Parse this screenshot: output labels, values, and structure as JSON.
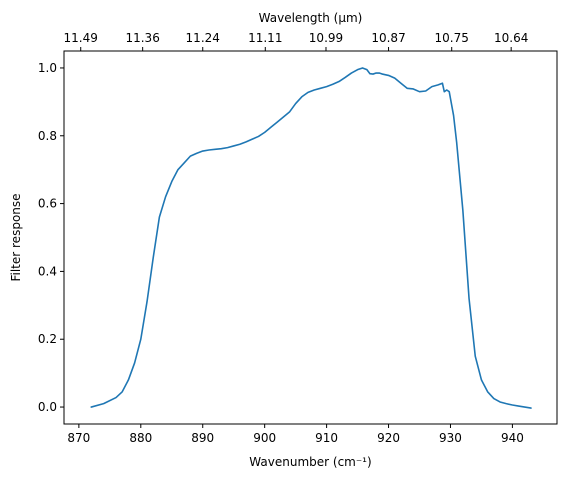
{
  "chart_data": {
    "type": "line",
    "title": "",
    "xlabel": "Wavenumber (cm⁻¹)",
    "ylabel": "Filter response",
    "top_axis_label": "Wavelength (μm)",
    "xlim": [
      867.6,
      947.2
    ],
    "ylim": [
      -0.05,
      1.05
    ],
    "x_ticks": [
      870,
      880,
      890,
      900,
      910,
      920,
      930,
      940
    ],
    "x_tick_labels": [
      "870",
      "880",
      "890",
      "900",
      "910",
      "920",
      "930",
      "940"
    ],
    "y_ticks": [
      0.0,
      0.2,
      0.4,
      0.6,
      0.8,
      1.0
    ],
    "y_tick_labels": [
      "0.0",
      "0.2",
      "0.4",
      "0.6",
      "0.8",
      "1.0"
    ],
    "top_ticks": [
      870.3,
      880.3,
      890.0,
      900.1,
      909.9,
      920.0,
      930.2,
      939.8
    ],
    "top_tick_labels": [
      "11.49",
      "11.36",
      "11.24",
      "11.11",
      "10.99",
      "10.87",
      "10.75",
      "10.64"
    ],
    "grid": false,
    "legend": "none",
    "series_color": "#1f77b4",
    "series": [
      {
        "x": [
          872,
          874,
          876,
          877,
          878,
          879,
          880,
          881,
          882,
          883,
          884,
          885,
          886,
          887,
          888,
          889,
          890,
          891,
          892,
          893,
          894,
          895,
          896,
          897,
          898,
          899,
          900,
          901,
          902,
          903,
          904,
          905,
          906,
          907,
          908,
          909,
          910,
          911,
          912,
          913,
          914,
          915,
          915.8,
          916.5,
          917,
          917.5,
          918,
          918.5,
          919,
          920,
          921,
          922,
          923,
          924,
          925,
          926,
          927,
          928,
          928.7,
          929,
          929.4,
          929.8,
          930,
          930.5,
          931,
          932,
          933,
          934,
          935,
          936,
          937,
          938,
          939,
          940,
          941,
          942,
          943
        ],
        "y": [
          0.0,
          0.01,
          0.028,
          0.045,
          0.08,
          0.13,
          0.2,
          0.31,
          0.44,
          0.56,
          0.62,
          0.665,
          0.7,
          0.72,
          0.74,
          0.748,
          0.755,
          0.758,
          0.76,
          0.762,
          0.765,
          0.77,
          0.775,
          0.782,
          0.79,
          0.798,
          0.81,
          0.825,
          0.84,
          0.855,
          0.87,
          0.895,
          0.915,
          0.928,
          0.935,
          0.94,
          0.945,
          0.952,
          0.96,
          0.972,
          0.985,
          0.995,
          1.0,
          0.995,
          0.983,
          0.982,
          0.985,
          0.985,
          0.982,
          0.978,
          0.97,
          0.955,
          0.94,
          0.938,
          0.93,
          0.932,
          0.945,
          0.95,
          0.955,
          0.93,
          0.935,
          0.93,
          0.91,
          0.86,
          0.78,
          0.58,
          0.32,
          0.15,
          0.08,
          0.045,
          0.025,
          0.015,
          0.01,
          0.006,
          0.003,
          0.0,
          -0.003
        ]
      }
    ]
  }
}
